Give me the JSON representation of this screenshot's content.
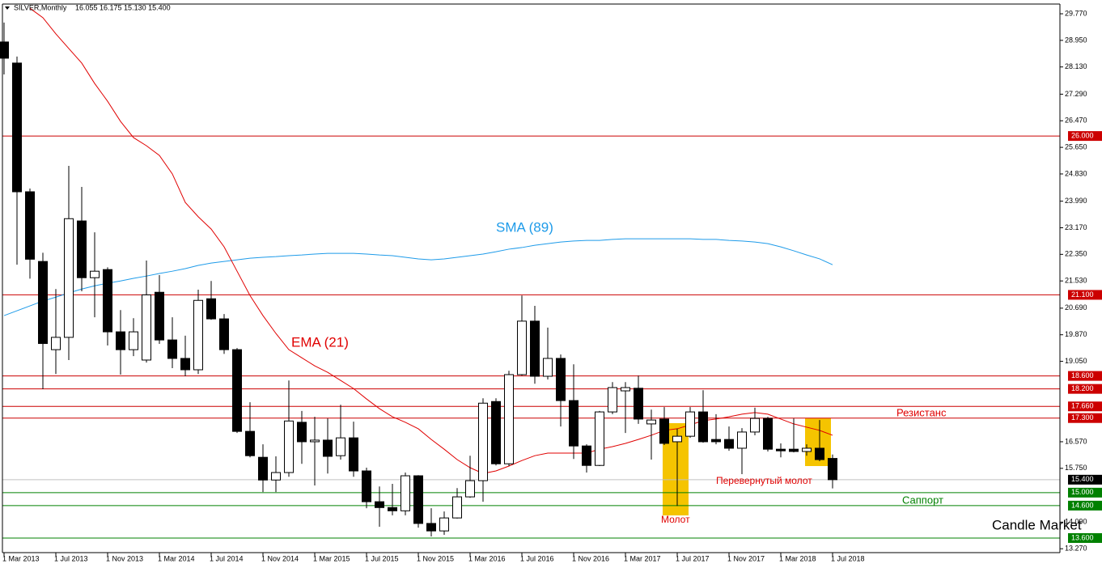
{
  "chart_data": {
    "type": "candlestick",
    "title": "SILVER,Monthly",
    "ohlc_text": "16.055 16.175 15.130 15.400",
    "categories": [
      "1 Mar 2013",
      null,
      null,
      null,
      "1 Jul 2013",
      null,
      null,
      null,
      "1 Nov 2013",
      null,
      null,
      null,
      "1 Mar 2014",
      null,
      null,
      null,
      "1 Jul 2014",
      null,
      null,
      null,
      "1 Nov 2014",
      null,
      null,
      null,
      "1 Mar 2015",
      null,
      null,
      null,
      "1 Jul 2015",
      null,
      null,
      null,
      "1 Nov 2015",
      null,
      null,
      null,
      "1 Mar 2016",
      null,
      null,
      null,
      "1 Jul 2016",
      null,
      null,
      null,
      "1 Nov 2016",
      null,
      null,
      null,
      "1 Mar 2017",
      null,
      null,
      null,
      "1 Jul 2017",
      null,
      null,
      null,
      "1 Nov 2017",
      null,
      null,
      null,
      "1 Mar 2018",
      null,
      null,
      null,
      "1 Jul 2018"
    ],
    "open": [
      28.9,
      28.25,
      24.28,
      22.13,
      19.41,
      19.79,
      23.38,
      21.63,
      21.88,
      19.96,
      19.41,
      19.09,
      21.18,
      19.71,
      19.14,
      18.79,
      20.98,
      20.36,
      19.41,
      16.89,
      16.09,
      15.39,
      15.62,
      17.17,
      16.57,
      16.62,
      16.14,
      16.69,
      15.67,
      14.72,
      14.54,
      14.44,
      15.52,
      14.05,
      13.82,
      14.22,
      14.87,
      15.37,
      17.81,
      15.89,
      18.64,
      20.29,
      18.59,
      19.14,
      17.84,
      16.44,
      15.84,
      17.49,
      18.14,
      18.22,
      17.12,
      17.27,
      16.57,
      16.74,
      17.49,
      16.64,
      16.64,
      16.37,
      16.87,
      17.29,
      16.34,
      16.34,
      16.27,
      16.37,
      16.055
    ],
    "high": [
      29.5,
      28.45,
      24.38,
      22.4,
      21.28,
      25.08,
      24.43,
      23.03,
      21.95,
      20.63,
      20.38,
      22.16,
      21.71,
      20.41,
      19.84,
      21.26,
      21.53,
      20.51,
      19.46,
      17.79,
      16.49,
      16.12,
      18.46,
      17.52,
      17.34,
      17.29,
      17.71,
      17.19,
      15.77,
      15.19,
      15.27,
      15.62,
      15.54,
      14.52,
      14.42,
      15.14,
      16.14,
      17.91,
      17.91,
      18.76,
      21.08,
      20.76,
      20.09,
      19.26,
      18.96,
      16.49,
      17.52,
      18.41,
      18.41,
      18.61,
      17.56,
      17.64,
      16.97,
      17.64,
      18.16,
      17.42,
      17.04,
      16.99,
      17.62,
      17.34,
      16.52,
      17.29,
      16.49,
      17.24,
      16.175
    ],
    "low": [
      27.9,
      22.03,
      21.6,
      18.19,
      18.66,
      19.09,
      21.21,
      20.41,
      19.54,
      18.64,
      19.21,
      19.01,
      19.59,
      18.84,
      18.59,
      18.66,
      20.33,
      19.28,
      16.84,
      16.09,
      15.02,
      15.02,
      15.49,
      15.89,
      15.22,
      15.59,
      16.02,
      15.49,
      14.52,
      13.95,
      14.3,
      14.3,
      13.92,
      13.65,
      13.7,
      14.2,
      14.84,
      14.72,
      15.84,
      15.82,
      18.61,
      18.36,
      18.49,
      17.04,
      16.04,
      15.62,
      15.82,
      17.42,
      16.84,
      17.12,
      16.02,
      16.47,
      14.59,
      16.69,
      16.54,
      16.49,
      16.29,
      15.57,
      16.77,
      16.27,
      16.09,
      16.24,
      16.14,
      15.97,
      15.13
    ],
    "close": [
      28.4,
      24.28,
      22.2,
      19.6,
      19.79,
      23.45,
      21.63,
      21.83,
      19.96,
      19.41,
      19.96,
      21.1,
      19.71,
      19.14,
      18.79,
      20.93,
      20.36,
      19.41,
      16.89,
      16.14,
      15.39,
      15.62,
      17.21,
      16.57,
      16.62,
      16.12,
      16.69,
      15.67,
      14.72,
      14.54,
      14.44,
      15.52,
      14.05,
      13.82,
      14.22,
      14.87,
      15.37,
      17.76,
      15.89,
      18.64,
      20.29,
      18.59,
      19.14,
      17.84,
      16.44,
      15.84,
      17.49,
      18.24,
      18.24,
      17.27,
      17.24,
      16.52,
      16.74,
      17.49,
      16.57,
      16.57,
      16.37,
      16.87,
      17.29,
      16.34,
      16.29,
      16.27,
      16.37,
      16.02,
      15.4
    ],
    "up_color": "#ffffff",
    "down_color": "#000000",
    "series": [
      {
        "name": "SMA (89)",
        "color": "#1e9be9",
        "values": [
          20.46,
          20.61,
          20.76,
          20.91,
          21.03,
          21.16,
          21.28,
          21.38,
          21.46,
          21.53,
          21.61,
          21.68,
          21.76,
          21.83,
          21.91,
          22.01,
          22.08,
          22.13,
          22.18,
          22.23,
          22.26,
          22.28,
          22.31,
          22.33,
          22.36,
          22.38,
          22.38,
          22.38,
          22.36,
          22.33,
          22.31,
          22.26,
          22.21,
          22.18,
          22.21,
          22.26,
          22.31,
          22.36,
          22.43,
          22.51,
          22.56,
          22.63,
          22.68,
          22.73,
          22.76,
          22.78,
          22.78,
          22.81,
          22.83,
          22.83,
          22.83,
          22.83,
          22.83,
          22.83,
          22.81,
          22.81,
          22.78,
          22.76,
          22.73,
          22.68,
          22.58,
          22.46,
          22.33,
          22.21,
          22.03
        ]
      },
      {
        "name": "EMA (21)",
        "color": "#e00000",
        "values": [
          null,
          null,
          29.94,
          29.65,
          29.15,
          28.7,
          28.25,
          27.62,
          27.07,
          26.45,
          25.95,
          25.7,
          25.4,
          24.83,
          23.95,
          23.51,
          23.13,
          22.58,
          21.83,
          21.08,
          20.46,
          19.91,
          19.41,
          19.16,
          18.91,
          18.71,
          18.46,
          18.21,
          17.89,
          17.59,
          17.34,
          17.17,
          16.97,
          16.64,
          16.34,
          16.02,
          15.77,
          15.59,
          15.67,
          15.82,
          15.99,
          16.14,
          16.22,
          16.22,
          16.22,
          16.22,
          16.34,
          16.42,
          16.52,
          16.64,
          16.77,
          16.92,
          16.97,
          17.09,
          17.22,
          17.27,
          17.34,
          17.42,
          17.47,
          17.42,
          17.27,
          17.12,
          17.02,
          16.92,
          16.77
        ]
      }
    ],
    "ylim": [
      13.15,
      30.07
    ],
    "yticks": [
      {
        "value": 29.77,
        "label": "29.770"
      },
      {
        "value": 28.95,
        "label": "28.950"
      },
      {
        "value": 28.13,
        "label": "28.130"
      },
      {
        "value": 27.29,
        "label": "27.290"
      },
      {
        "value": 26.47,
        "label": "26.470"
      },
      {
        "value": 25.65,
        "label": "25.650"
      },
      {
        "value": 24.83,
        "label": "24.830"
      },
      {
        "value": 23.99,
        "label": "23.990"
      },
      {
        "value": 23.17,
        "label": "23.170"
      },
      {
        "value": 22.35,
        "label": "22.350"
      },
      {
        "value": 21.53,
        "label": "21.530"
      },
      {
        "value": 20.69,
        "label": "20.690"
      },
      {
        "value": 19.87,
        "label": "19.870"
      },
      {
        "value": 19.05,
        "label": "19.050"
      },
      {
        "value": 16.57,
        "label": "16.570"
      },
      {
        "value": 15.75,
        "label": "15.750"
      },
      {
        "value": 14.09,
        "label": "14.090"
      },
      {
        "value": 13.27,
        "label": "13.270"
      }
    ],
    "levels": [
      {
        "value": 26,
        "label": "26.000",
        "color": "#cc0000"
      },
      {
        "value": 21.1,
        "label": "21.100",
        "color": "#cc0000"
      },
      {
        "value": 18.6,
        "label": "18.600",
        "color": "#cc0000"
      },
      {
        "value": 18.2,
        "label": "18.200",
        "color": "#cc0000"
      },
      {
        "value": 17.66,
        "label": "17.660",
        "color": "#cc0000"
      },
      {
        "value": 17.3,
        "label": "17.300",
        "color": "#cc0000"
      },
      {
        "value": 15.4,
        "label": "15.400",
        "color": "#c0c0c0"
      },
      {
        "value": 15,
        "label": "15.000",
        "color": "#008000"
      },
      {
        "value": 14.6,
        "label": "14.600",
        "color": "#008000"
      },
      {
        "value": 13.6,
        "label": "13.600",
        "color": "#008000"
      }
    ],
    "annotations": {
      "resistance": "Резистанс",
      "support": "Саппорт",
      "hammer": "Молот",
      "inverted_hammer": "Перевернутый молот",
      "brand": "Candle Market"
    }
  }
}
